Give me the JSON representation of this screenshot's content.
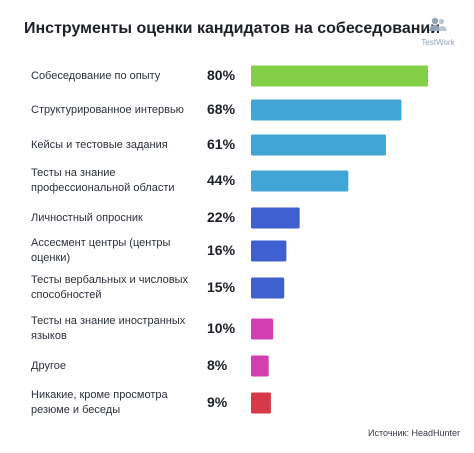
{
  "header": {
    "title": "Инструменты оценки кандидатов на собеседовании",
    "logo_text": "TestWork",
    "logo_icon": "people-icon"
  },
  "source": "Источник: HeadHunter",
  "chart_data": {
    "type": "bar",
    "orientation": "horizontal",
    "title": "Инструменты оценки кандидатов на собеседовании",
    "xlabel": "",
    "ylabel": "",
    "xlim": [
      0,
      80
    ],
    "grid": false,
    "categories": [
      "Собеседование по опыту",
      "Структурированное интервью",
      "Кейсы и тестовые задания",
      "Тесты на знание профессиональной области",
      "Личностный опросник",
      "Ассесмент центры (центры оценки)",
      "Тесты вербальных и числовых способностей",
      "Тесты на знание иностранных языков",
      "Другое",
      "Никакие, кроме просмотра резюме и беседы"
    ],
    "values": [
      80,
      68,
      61,
      44,
      22,
      16,
      15,
      10,
      8,
      9
    ],
    "value_labels": [
      "80%",
      "68%",
      "61%",
      "44%",
      "22%",
      "16%",
      "15%",
      "10%",
      "8%",
      "9%"
    ],
    "bar_colors": [
      "#82cf45",
      "#41a6d6",
      "#41a6d6",
      "#41a6d6",
      "#3d5fd0",
      "#3d5fd0",
      "#3d5fd0",
      "#d23fb0",
      "#d23fb0",
      "#d63a48"
    ]
  }
}
